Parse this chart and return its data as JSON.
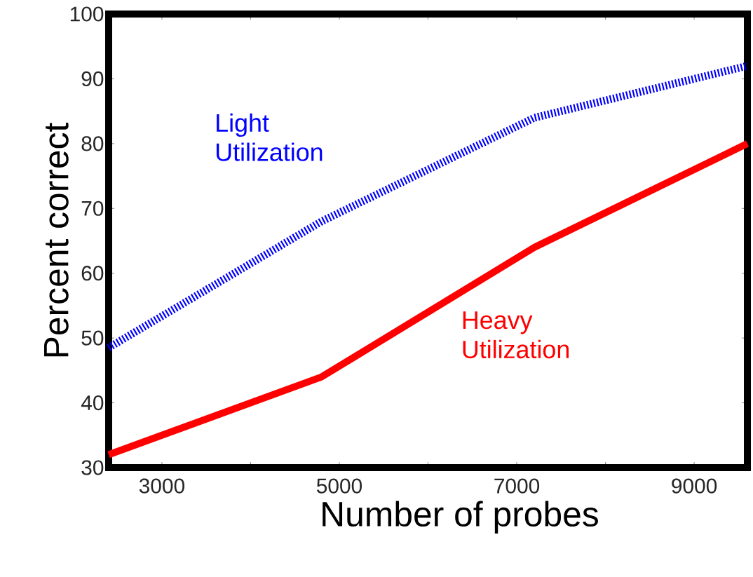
{
  "chart_data": {
    "type": "line",
    "xlabel": "Number of probes",
    "ylabel": "Percent correct",
    "x": [
      2400,
      4800,
      7200,
      9600
    ],
    "series": [
      {
        "name": "Light Utilization",
        "color": "#0000ff",
        "line_style": "dotted",
        "values": [
          48.5,
          68,
          84,
          92
        ]
      },
      {
        "name": "Heavy Utilization",
        "color": "#ff0000",
        "line_style": "solid",
        "values": [
          32,
          44,
          64,
          80
        ]
      }
    ],
    "xlim": [
      2400,
      9600
    ],
    "ylim": [
      30,
      100
    ],
    "xticks": [
      3000,
      {
        "value": 4000,
        "label": null
      },
      5000,
      {
        "value": 6000,
        "label": null
      },
      7000,
      {
        "value": 8000,
        "label": null
      },
      9000
    ],
    "yticks": [
      30,
      40,
      50,
      60,
      70,
      80,
      90,
      100
    ],
    "grid": false,
    "legend": false,
    "marker": "none"
  }
}
